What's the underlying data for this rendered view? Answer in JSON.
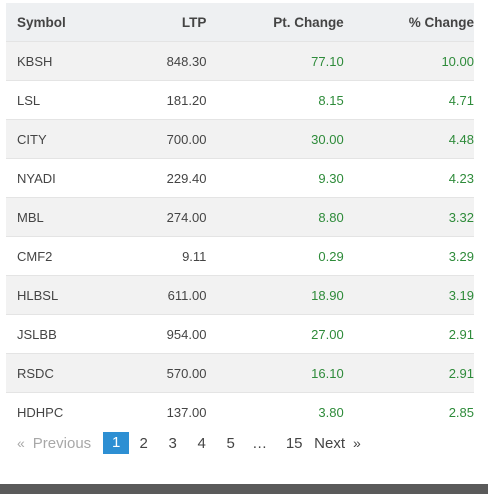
{
  "table": {
    "headers": [
      "Symbol",
      "LTP",
      "Pt. Change",
      "% Change"
    ],
    "rows": [
      {
        "symbol": "KBSH",
        "ltp": "848.30",
        "pt_change": "77.10",
        "pct_change": "10.00"
      },
      {
        "symbol": "LSL",
        "ltp": "181.20",
        "pt_change": "8.15",
        "pct_change": "4.71"
      },
      {
        "symbol": "CITY",
        "ltp": "700.00",
        "pt_change": "30.00",
        "pct_change": "4.48"
      },
      {
        "symbol": "NYADI",
        "ltp": "229.40",
        "pt_change": "9.30",
        "pct_change": "4.23"
      },
      {
        "symbol": "MBL",
        "ltp": "274.00",
        "pt_change": "8.80",
        "pct_change": "3.32"
      },
      {
        "symbol": "CMF2",
        "ltp": "9.11",
        "pt_change": "0.29",
        "pct_change": "3.29"
      },
      {
        "symbol": "HLBSL",
        "ltp": "611.00",
        "pt_change": "18.90",
        "pct_change": "3.19"
      },
      {
        "symbol": "JSLBB",
        "ltp": "954.00",
        "pt_change": "27.00",
        "pct_change": "2.91"
      },
      {
        "symbol": "RSDC",
        "ltp": "570.00",
        "pt_change": "16.10",
        "pct_change": "2.91"
      },
      {
        "symbol": "HDHPC",
        "ltp": "137.00",
        "pt_change": "3.80",
        "pct_change": "2.85"
      }
    ]
  },
  "pagination": {
    "prev_arrow": "«",
    "prev_label": "Previous",
    "pages": [
      "1",
      "2",
      "3",
      "4",
      "5"
    ],
    "active_page": "1",
    "ellipsis": "…",
    "last_page": "15",
    "next_label": "Next",
    "next_arrow": "»"
  },
  "colors": {
    "positive": "#2e8b3a",
    "active_page_bg": "#2d8fd3",
    "header_bg": "#eef0f2"
  }
}
